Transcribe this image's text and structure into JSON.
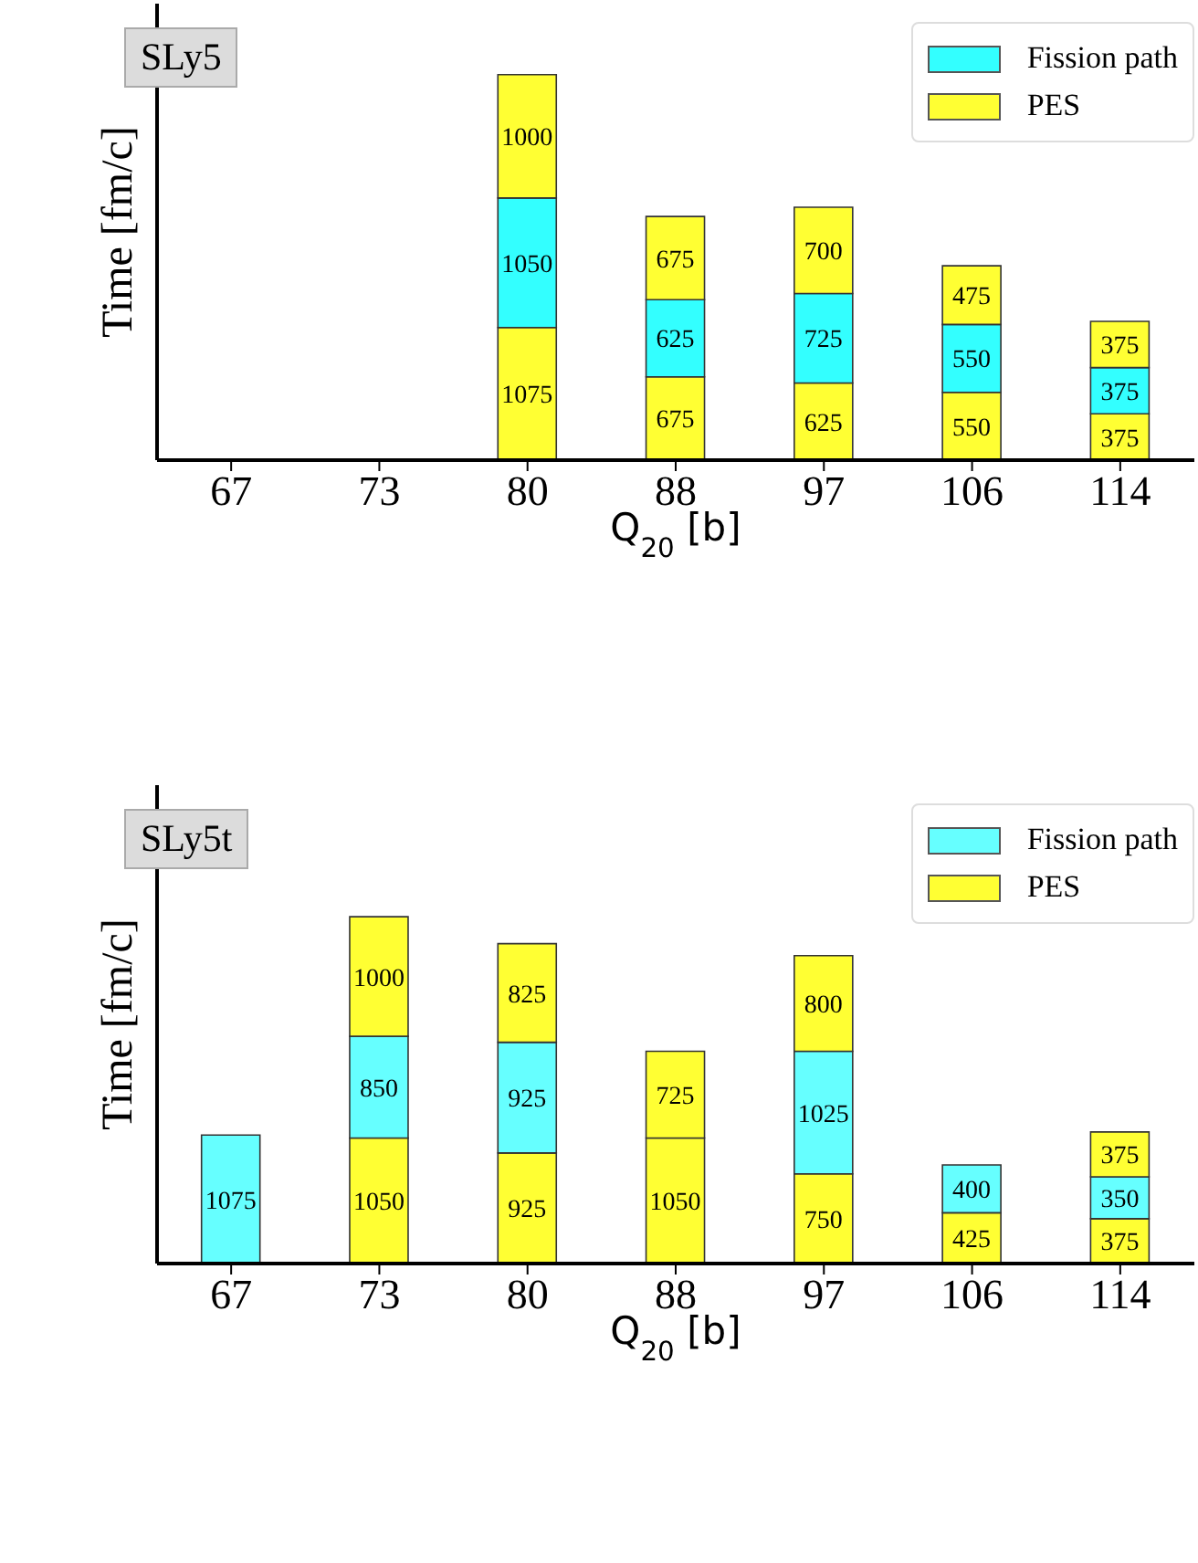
{
  "chart_data": [
    {
      "type": "bar",
      "title": "SLy5",
      "xlabel": "Q$_{20}$ [b]",
      "ylabel": "Time [fm/c]",
      "categories": [
        "67",
        "73",
        "80",
        "88",
        "97",
        "106",
        "114"
      ],
      "stacked": true,
      "data_labels": true,
      "legend": "top right",
      "ylim": [
        0,
        3700
      ],
      "series": [
        {
          "color": "#ffff33",
          "values": [
            null,
            null,
            1075,
            675,
            625,
            550,
            375
          ]
        },
        {
          "name": "Fission path",
          "color": "#33ffff",
          "values": [
            null,
            null,
            1050,
            625,
            725,
            550,
            375
          ]
        },
        {
          "name": "PES",
          "color": "#ffff33",
          "values": [
            null,
            null,
            1000,
            675,
            700,
            475,
            375
          ]
        }
      ]
    },
    {
      "type": "bar",
      "title": "SLy5t",
      "xlabel": "Q$_{20}$ [b]",
      "ylabel": "Time [fm/c]",
      "categories": [
        "67",
        "73",
        "80",
        "88",
        "97",
        "106",
        "114"
      ],
      "stacked": true,
      "data_labels": true,
      "legend": "top right",
      "ylim": [
        0,
        4000
      ],
      "series": [
        {
          "color": "#ffff33",
          "values": [
            null,
            1050,
            925,
            1050,
            750,
            425,
            375
          ]
        },
        {
          "name": "Fission path",
          "color": "#66ffff",
          "values": [
            1075,
            850,
            925,
            null,
            1025,
            400,
            350
          ]
        },
        {
          "name": "PES",
          "color": "#ffff33",
          "values": [
            null,
            1000,
            825,
            725,
            800,
            null,
            375
          ]
        }
      ]
    }
  ]
}
